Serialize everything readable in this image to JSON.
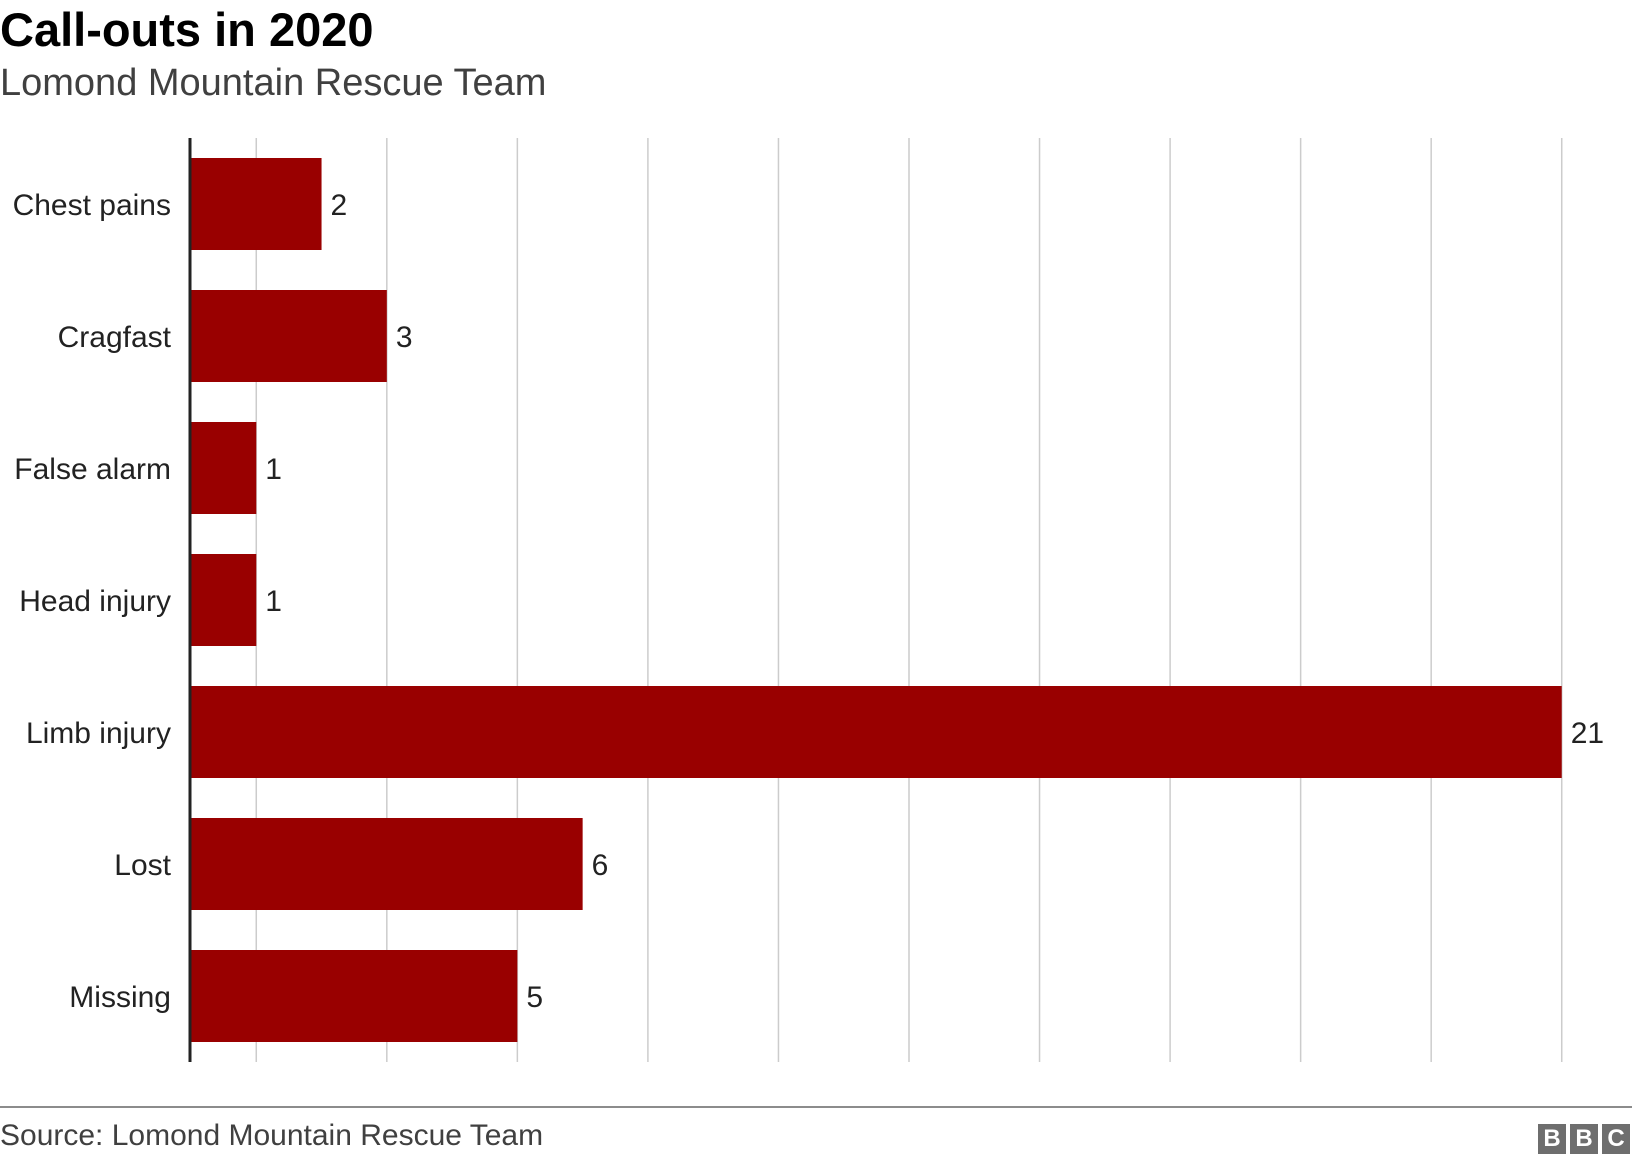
{
  "header": {
    "title": "Call-outs in 2020",
    "subtitle": "Lomond Mountain Rescue Team"
  },
  "footer": {
    "source": "Source: Lomond Mountain Rescue Team",
    "logo_letters": [
      "B",
      "B",
      "C"
    ]
  },
  "colors": {
    "bar": "#990000",
    "grid": "#cccccc",
    "axis": "#222222"
  },
  "chart_data": {
    "type": "bar",
    "orientation": "horizontal",
    "title": "Call-outs in 2020",
    "subtitle": "Lomond Mountain Rescue Team",
    "categories": [
      "Chest pains",
      "Cragfast",
      "False alarm",
      "Head injury",
      "Limb injury",
      "Lost",
      "Missing"
    ],
    "values": [
      2,
      3,
      1,
      1,
      21,
      6,
      5
    ],
    "xlim": [
      0,
      22
    ],
    "grid": true,
    "data_labels": true
  }
}
